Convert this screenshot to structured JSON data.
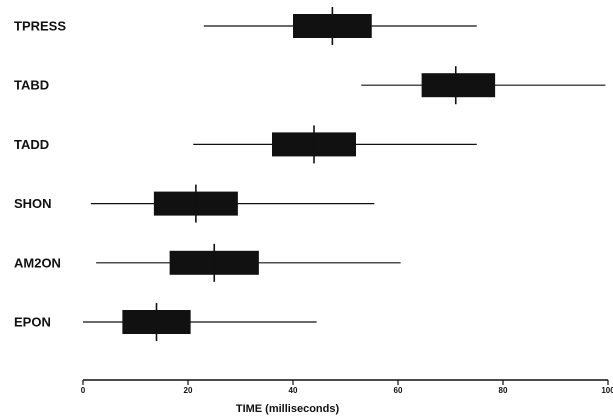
{
  "chart_data": {
    "type": "boxplot",
    "title": "",
    "xlabel": "TIME (milliseconds)",
    "ylabel": "",
    "xlim": [
      0,
      100
    ],
    "x_ticks": [
      0,
      20,
      40,
      60,
      80,
      100
    ],
    "x_tick_labels": [
      "0",
      "20",
      "40",
      "60",
      "80",
      "100"
    ],
    "grid": false,
    "categories": [
      "TPRESS",
      "TABD",
      "TADD",
      "SHON",
      "AM2ON",
      "EPON"
    ],
    "series": [
      {
        "category": "TPRESS",
        "min": 23,
        "q1": 40,
        "median": 47.5,
        "q3": 55,
        "max": 75
      },
      {
        "category": "TABD",
        "min": 53,
        "q1": 64.5,
        "median": 71,
        "q3": 78.5,
        "max": 99.5
      },
      {
        "category": "TADD",
        "min": 21,
        "q1": 36,
        "median": 44,
        "q3": 52,
        "max": 75
      },
      {
        "category": "SHON",
        "min": 1.5,
        "q1": 13.5,
        "median": 21.5,
        "q3": 29.5,
        "max": 55.5
      },
      {
        "category": "AM2ON",
        "min": 2.5,
        "q1": 16.5,
        "median": 25,
        "q3": 33.5,
        "max": 60.5
      },
      {
        "category": "EPON",
        "min": 0,
        "q1": 7.5,
        "median": 14,
        "q3": 20.5,
        "max": 44.5
      }
    ]
  }
}
